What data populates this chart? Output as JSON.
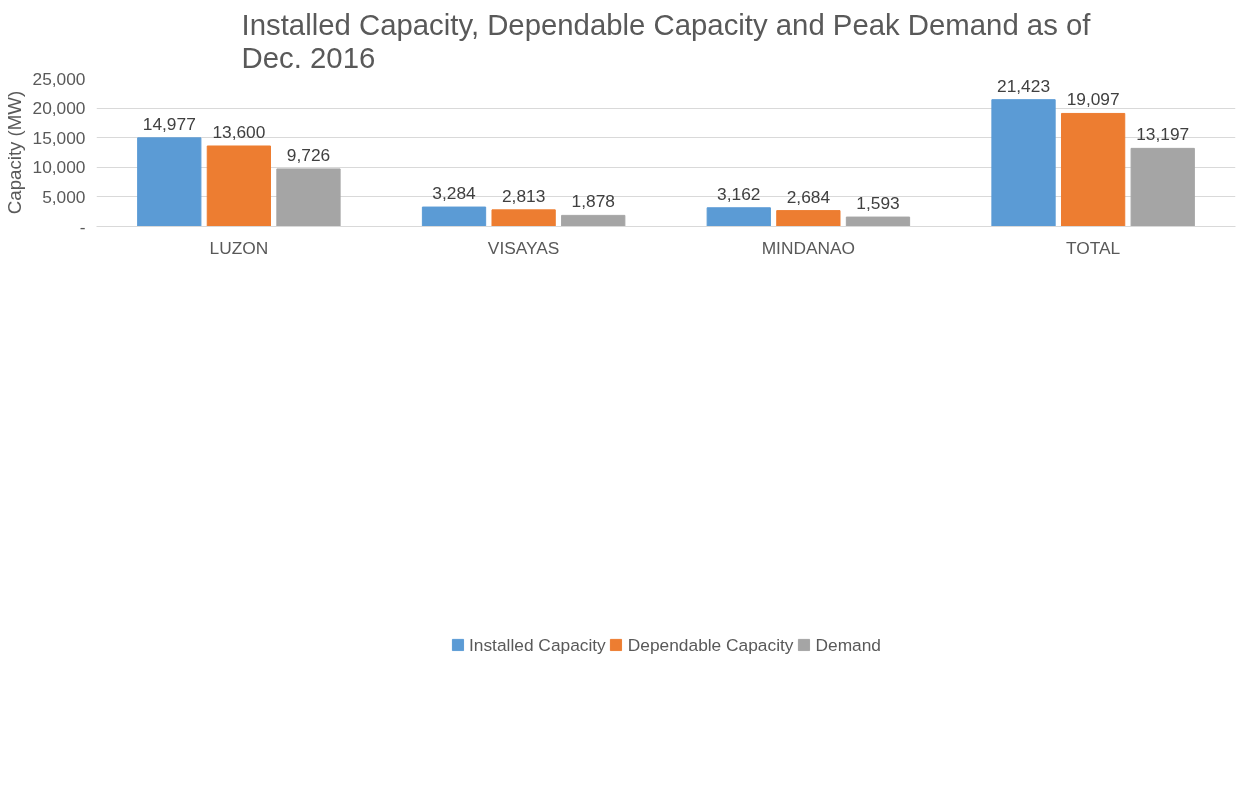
{
  "chart_data": {
    "type": "bar",
    "title": "Installed Capacity, Dependable Capacity and Peak Demand as of Dec. 2016",
    "ylabel": "Capacity (MW)",
    "categories": [
      "LUZON",
      "VISAYAS",
      "MINDANAO",
      "TOTAL"
    ],
    "series": [
      {
        "name": "Installed Capacity",
        "color": "#5b9bd5",
        "values": [
          14977,
          3284,
          3162,
          21423
        ],
        "value_labels": [
          "14,977",
          "3,284",
          "3,162",
          "21,423"
        ]
      },
      {
        "name": "Dependable Capacity",
        "color": "#ed7d31",
        "values": [
          13600,
          2813,
          2684,
          19097
        ],
        "value_labels": [
          "13,600",
          "2,813",
          "2,684",
          "19,097"
        ]
      },
      {
        "name": "Demand",
        "color": "#a5a5a5",
        "values": [
          9726,
          1878,
          1593,
          13197
        ],
        "value_labels": [
          "9,726",
          "1,878",
          "1,593",
          "13,197"
        ]
      }
    ],
    "ylim": [
      0,
      25000
    ],
    "yticks": [
      {
        "value": 0,
        "label": "-"
      },
      {
        "value": 5000,
        "label": "5,000"
      },
      {
        "value": 10000,
        "label": "10,000"
      },
      {
        "value": 15000,
        "label": "15,000"
      },
      {
        "value": 20000,
        "label": "20,000"
      },
      {
        "value": 25000,
        "label": "25,000"
      }
    ],
    "grid": "y",
    "legend": "bottom"
  }
}
